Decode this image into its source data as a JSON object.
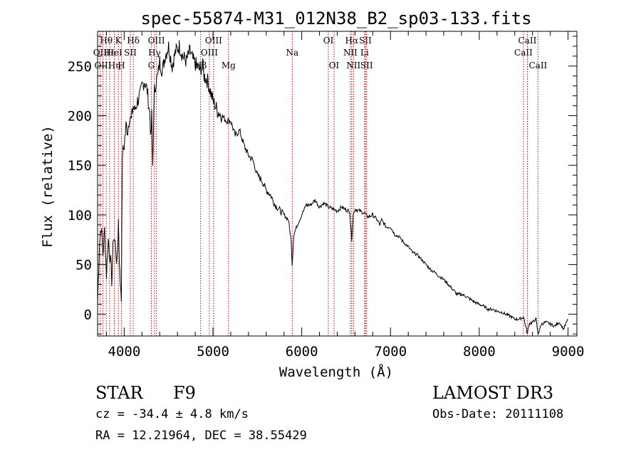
{
  "chart_data": {
    "type": "line",
    "title": "spec-55874-M31_012N38_B2_sp03-133.fits",
    "xlabel": "Wavelength (Å)",
    "ylabel": "Flux (relative)",
    "xlim": [
      3700,
      9100
    ],
    "ylim": [
      -22,
      285
    ],
    "xticks": [
      4000,
      5000,
      6000,
      7000,
      8000,
      9000
    ],
    "xtick_labels": [
      "4000",
      "5000",
      "6000",
      "7000",
      "8000",
      "9000"
    ],
    "yticks": [
      0,
      50,
      100,
      150,
      200,
      250
    ],
    "ytick_labels": [
      "0",
      "50",
      "100",
      "150",
      "200",
      "250"
    ],
    "line_color": "#000000",
    "marker_color": "#cc0000",
    "series": [
      {
        "name": "spectrum",
        "x": [
          3700,
          3720,
          3740,
          3760,
          3780,
          3800,
          3820,
          3840,
          3860,
          3880,
          3900,
          3920,
          3935,
          3950,
          3968,
          3980,
          4000,
          4020,
          4040,
          4060,
          4080,
          4100,
          4120,
          4150,
          4180,
          4200,
          4230,
          4260,
          4290,
          4300,
          4310,
          4320,
          4340,
          4360,
          4380,
          4400,
          4430,
          4460,
          4500,
          4540,
          4580,
          4620,
          4660,
          4700,
          4740,
          4780,
          4820,
          4860,
          4880,
          4900,
          4940,
          5000,
          5050,
          5100,
          5150,
          5200,
          5250,
          5300,
          5350,
          5400,
          5450,
          5500,
          5550,
          5600,
          5650,
          5700,
          5750,
          5800,
          5850,
          5880,
          5893,
          5910,
          5950,
          6000,
          6050,
          6100,
          6150,
          6200,
          6250,
          6300,
          6350,
          6400,
          6450,
          6500,
          6540,
          6563,
          6580,
          6600,
          6650,
          6700,
          6750,
          6800,
          6850,
          6880,
          6900,
          6950,
          7000,
          7050,
          7100,
          7150,
          7200,
          7250,
          7300,
          7350,
          7400,
          7450,
          7500,
          7550,
          7600,
          7650,
          7700,
          7750,
          7800,
          7850,
          7900,
          7950,
          8000,
          8050,
          8100,
          8150,
          8200,
          8250,
          8300,
          8350,
          8400,
          8450,
          8500,
          8542,
          8560,
          8600,
          8640,
          8662,
          8700,
          8750,
          8800,
          8850,
          8900,
          8950,
          9000
        ],
        "values": [
          10,
          70,
          90,
          60,
          85,
          40,
          75,
          60,
          35,
          80,
          70,
          50,
          95,
          40,
          20,
          160,
          170,
          190,
          185,
          200,
          195,
          210,
          205,
          215,
          220,
          230,
          235,
          225,
          200,
          175,
          200,
          150,
          225,
          235,
          240,
          255,
          245,
          260,
          270,
          250,
          265,
          270,
          260,
          255,
          265,
          255,
          250,
          245,
          255,
          240,
          235,
          215,
          205,
          200,
          195,
          195,
          180,
          185,
          170,
          160,
          155,
          140,
          135,
          125,
          120,
          110,
          105,
          100,
          95,
          75,
          50,
          80,
          90,
          100,
          110,
          110,
          115,
          108,
          112,
          108,
          106,
          104,
          108,
          105,
          104,
          75,
          100,
          106,
          104,
          102,
          98,
          100,
          95,
          90,
          95,
          88,
          88,
          80,
          78,
          72,
          68,
          62,
          60,
          55,
          50,
          45,
          42,
          38,
          35,
          30,
          25,
          20,
          20,
          18,
          15,
          12,
          10,
          8,
          5,
          5,
          3,
          2,
          0,
          -2,
          -5,
          -5,
          -3,
          -20,
          -10,
          -8,
          -5,
          -20,
          -10,
          -8,
          -10,
          -12,
          -8,
          -15,
          -5
        ]
      }
    ],
    "line_markers": [
      {
        "label": "Hθ",
        "x": 3798,
        "row": 0
      },
      {
        "label": "OII",
        "x": 3727,
        "row": 1
      },
      {
        "label": "OIII",
        "x": 3760,
        "row": 2
      },
      {
        "label": "Hε",
        "x": 3835,
        "row": 1
      },
      {
        "label": "Hη",
        "x": 3889,
        "row": 2
      },
      {
        "label": "K",
        "x": 3934,
        "row": 0
      },
      {
        "label": "HeI",
        "x": 3889,
        "row": 1
      },
      {
        "label": "H",
        "x": 3969,
        "row": 2
      },
      {
        "label": "Hδ",
        "x": 4102,
        "row": 0
      },
      {
        "label": "SII",
        "x": 4069,
        "row": 1
      },
      {
        "label": "OIII",
        "x": 4363,
        "row": 0
      },
      {
        "label": "Hγ",
        "x": 4341,
        "row": 1
      },
      {
        "label": "G",
        "x": 4305,
        "row": 2
      },
      {
        "label": "Hβ",
        "x": 4861,
        "row": 2
      },
      {
        "label": "OIII",
        "x": 5007,
        "row": 0
      },
      {
        "label": "OIII",
        "x": 4959,
        "row": 1
      },
      {
        "label": "Mg",
        "x": 5175,
        "row": 2
      },
      {
        "label": "Na",
        "x": 5893,
        "row": 1
      },
      {
        "label": "OI",
        "x": 6300,
        "row": 0
      },
      {
        "label": "OI",
        "x": 6364,
        "row": 2
      },
      {
        "label": "Hα",
        "x": 6563,
        "row": 0
      },
      {
        "label": "NII",
        "x": 6548,
        "row": 1
      },
      {
        "label": "NII",
        "x": 6583,
        "row": 2
      },
      {
        "label": "SII",
        "x": 6717,
        "row": 0
      },
      {
        "label": "Li",
        "x": 6708,
        "row": 1
      },
      {
        "label": "SII",
        "x": 6731,
        "row": 2
      },
      {
        "label": "CaII",
        "x": 8542,
        "row": 0
      },
      {
        "label": "CaII",
        "x": 8498,
        "row": 1
      },
      {
        "label": "CaII",
        "x": 8662,
        "row": 2
      }
    ]
  },
  "info": {
    "class": "STAR",
    "subclass": "F9",
    "survey": "LAMOST DR3",
    "cz": "cz = -34.4 ± 4.8 km/s",
    "obs_date": "Obs-Date: 20111108",
    "coords": "RA =  12.21964, DEC =  38.55429"
  }
}
